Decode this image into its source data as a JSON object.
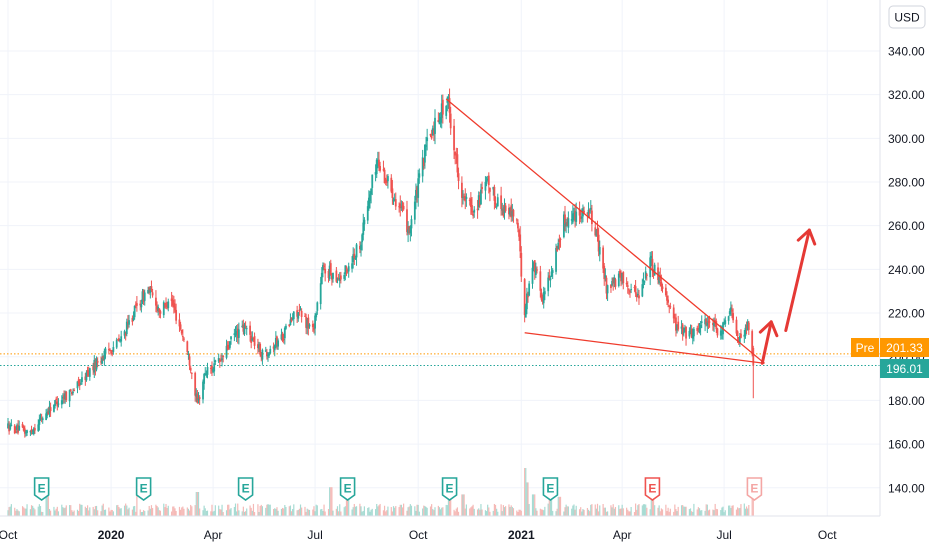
{
  "currency": "USD",
  "colors": {
    "up": "#26a69a",
    "down": "#ef5350",
    "volume_up": "#a7dbd3",
    "volume_down": "#f5b9b6",
    "grid": "#f0f3fa",
    "axis_text": "#131722",
    "pre_market": "#ff9800",
    "last_price": "#26a69a",
    "trendline": "#ef3b2c",
    "arrow": "#e53935",
    "earnings_past": "#26a69a",
    "earnings_miss": "#ef5350"
  },
  "price_labels": {
    "pre_tag": "Pre",
    "pre_value": "201.33",
    "last_value": "196.01"
  },
  "chart_data": {
    "type": "candlestick",
    "y_axis": {
      "ticks": [
        "340.00",
        "320.00",
        "300.00",
        "280.00",
        "260.00",
        "240.00",
        "220.00",
        "200.00",
        "180.00",
        "160.00",
        "140.00"
      ],
      "tick_values": [
        340,
        320,
        300,
        280,
        260,
        240,
        220,
        200,
        180,
        160,
        140
      ],
      "range": [
        128,
        356
      ]
    },
    "x_axis": {
      "ticks": [
        "Oct",
        "2020",
        "Apr",
        "Jul",
        "Oct",
        "2021",
        "Apr",
        "Jul",
        "Oct"
      ],
      "tick_dates": [
        "2019-10-01",
        "2020-01-01",
        "2020-04-01",
        "2020-07-01",
        "2020-10-01",
        "2021-01-01",
        "2021-04-01",
        "2021-07-01",
        "2021-10-01"
      ],
      "bold_ticks": [
        "2020",
        "2021"
      ],
      "range": [
        "2019-10-01",
        "2021-11-01"
      ]
    },
    "price_path": [
      [
        "2019-10-01",
        168
      ],
      [
        "2019-10-20",
        165
      ],
      [
        "2019-11-10",
        178
      ],
      [
        "2019-12-01",
        186
      ],
      [
        "2019-12-20",
        198
      ],
      [
        "2020-01-10",
        208
      ],
      [
        "2020-01-25",
        224
      ],
      [
        "2020-02-03",
        231
      ],
      [
        "2020-02-15",
        220
      ],
      [
        "2020-02-22",
        228
      ],
      [
        "2020-03-05",
        210
      ],
      [
        "2020-03-12",
        196
      ],
      [
        "2020-03-18",
        178
      ],
      [
        "2020-03-25",
        193
      ],
      [
        "2020-04-08",
        198
      ],
      [
        "2020-04-20",
        210
      ],
      [
        "2020-04-30",
        213
      ],
      [
        "2020-05-15",
        201
      ],
      [
        "2020-06-01",
        209
      ],
      [
        "2020-06-15",
        221
      ],
      [
        "2020-06-29",
        212
      ],
      [
        "2020-07-08",
        240
      ],
      [
        "2020-07-25",
        236
      ],
      [
        "2020-08-10",
        252
      ],
      [
        "2020-08-25",
        290
      ],
      [
        "2020-09-08",
        276
      ],
      [
        "2020-09-23",
        258
      ],
      [
        "2020-10-08",
        296
      ],
      [
        "2020-10-20",
        312
      ],
      [
        "2020-10-28",
        316
      ],
      [
        "2020-11-02",
        296
      ],
      [
        "2020-11-10",
        272
      ],
      [
        "2020-11-20",
        267
      ],
      [
        "2020-12-01",
        279
      ],
      [
        "2020-12-15",
        268
      ],
      [
        "2020-12-28",
        264
      ],
      [
        "2021-01-04",
        221
      ],
      [
        "2021-01-12",
        244
      ],
      [
        "2021-01-20",
        226
      ],
      [
        "2021-01-28",
        240
      ],
      [
        "2021-02-08",
        262
      ],
      [
        "2021-02-20",
        266
      ],
      [
        "2021-03-02",
        268
      ],
      [
        "2021-03-08",
        258
      ],
      [
        "2021-03-18",
        232
      ],
      [
        "2021-04-01",
        236
      ],
      [
        "2021-04-15",
        228
      ],
      [
        "2021-04-26",
        244
      ],
      [
        "2021-05-08",
        232
      ],
      [
        "2021-05-20",
        213
      ],
      [
        "2021-06-01",
        210
      ],
      [
        "2021-06-14",
        217
      ],
      [
        "2021-06-28",
        210
      ],
      [
        "2021-07-06",
        223
      ],
      [
        "2021-07-15",
        208
      ],
      [
        "2021-07-22",
        214
      ],
      [
        "2021-07-27",
        196
      ]
    ],
    "volume_spikes": [
      [
        "2019-11-05",
        0.55
      ],
      [
        "2020-01-25",
        0.45
      ],
      [
        "2020-03-18",
        0.5
      ],
      [
        "2020-07-15",
        0.6
      ],
      [
        "2020-07-30",
        0.45
      ],
      [
        "2020-10-29",
        0.45
      ],
      [
        "2020-11-10",
        0.45
      ],
      [
        "2021-01-04",
        1.0
      ],
      [
        "2021-01-06",
        0.7
      ],
      [
        "2021-01-12",
        0.45
      ],
      [
        "2021-01-27",
        0.5
      ],
      [
        "2021-02-04",
        0.4
      ],
      [
        "2021-04-28",
        0.5
      ],
      [
        "2021-07-27",
        0.45
      ],
      [
        "2021-07-29",
        0.55
      ]
    ],
    "earnings_markers": [
      {
        "date": "2019-10-31",
        "label": "E",
        "kind": "past"
      },
      {
        "date": "2020-01-30",
        "label": "E",
        "kind": "past"
      },
      {
        "date": "2020-04-30",
        "label": "E",
        "kind": "past"
      },
      {
        "date": "2020-07-30",
        "label": "E",
        "kind": "past"
      },
      {
        "date": "2020-10-29",
        "label": "E",
        "kind": "past"
      },
      {
        "date": "2021-01-27",
        "label": "E",
        "kind": "past"
      },
      {
        "date": "2021-04-28",
        "label": "E",
        "kind": "miss"
      },
      {
        "date": "2021-07-28",
        "label": "E",
        "kind": "upcoming"
      }
    ],
    "trendlines": [
      {
        "name": "upper",
        "from": [
          "2020-10-26",
          318
        ],
        "to": [
          "2021-08-06",
          197
        ]
      },
      {
        "name": "lower",
        "from": [
          "2021-01-04",
          211
        ],
        "to": [
          "2021-08-06",
          197
        ]
      }
    ],
    "arrows": [
      {
        "from": [
          "2021-08-04",
          197
        ],
        "to": [
          "2021-08-12",
          216
        ]
      },
      {
        "from": [
          "2021-08-25",
          212
        ],
        "to": [
          "2021-09-15",
          258
        ]
      }
    ],
    "horizontal_levels": [
      {
        "name": "pre-market",
        "value": 201.33,
        "style": "dotted",
        "color": "#ff9800"
      },
      {
        "name": "last",
        "value": 196.01,
        "style": "dotted",
        "color": "#26a69a"
      }
    ]
  }
}
